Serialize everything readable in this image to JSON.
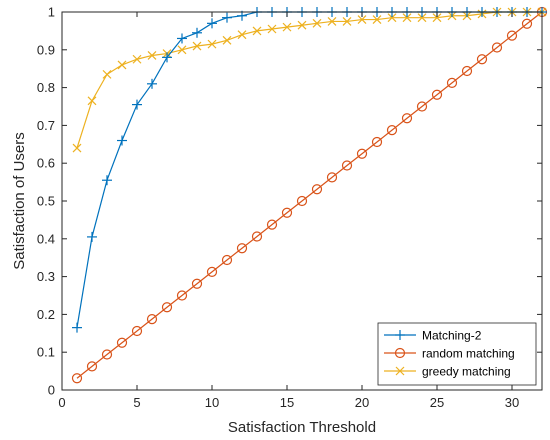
{
  "chart_data": {
    "type": "line",
    "title": "",
    "xlabel": "Satisfaction Threshold",
    "ylabel": "Satisfaction of Users",
    "xlim": [
      0,
      32
    ],
    "ylim": [
      0,
      1
    ],
    "xticks": [
      "0",
      "5",
      "10",
      "15",
      "20",
      "25",
      "30"
    ],
    "yticks": [
      "0",
      "0.1",
      "0.2",
      "0.3",
      "0.4",
      "0.5",
      "0.6",
      "0.7",
      "0.8",
      "0.9",
      "1"
    ],
    "grid": false,
    "legend_position": "bottom-right",
    "series": [
      {
        "name": "Matching-2",
        "color": "#0072BD",
        "marker": "plus",
        "x": [
          1,
          2,
          3,
          4,
          5,
          6,
          7,
          8,
          9,
          10,
          11,
          12,
          13,
          14,
          15,
          16,
          17,
          18,
          19,
          20,
          21,
          22,
          23,
          24,
          25,
          26,
          27,
          28,
          29,
          30,
          31,
          32
        ],
        "values": [
          0.165,
          0.405,
          0.555,
          0.66,
          0.755,
          0.81,
          0.88,
          0.93,
          0.945,
          0.97,
          0.985,
          0.99,
          1,
          1,
          1,
          1,
          1,
          1,
          1,
          1,
          1,
          1,
          1,
          1,
          1,
          1,
          1,
          1,
          1,
          1,
          1,
          1
        ]
      },
      {
        "name": "random matching",
        "color": "#D95319",
        "marker": "circle",
        "x": [
          1,
          2,
          3,
          4,
          5,
          6,
          7,
          8,
          9,
          10,
          11,
          12,
          13,
          14,
          15,
          16,
          17,
          18,
          19,
          20,
          21,
          22,
          23,
          24,
          25,
          26,
          27,
          28,
          29,
          30,
          31,
          32
        ],
        "values": [
          0.031,
          0.0625,
          0.094,
          0.125,
          0.156,
          0.1875,
          0.219,
          0.25,
          0.281,
          0.3125,
          0.344,
          0.375,
          0.406,
          0.4375,
          0.469,
          0.5,
          0.531,
          0.5625,
          0.594,
          0.625,
          0.656,
          0.6875,
          0.719,
          0.75,
          0.781,
          0.8125,
          0.844,
          0.875,
          0.906,
          0.9375,
          0.969,
          1
        ]
      },
      {
        "name": "greedy matching",
        "color": "#EDB120",
        "marker": "x",
        "x": [
          1,
          2,
          3,
          4,
          5,
          6,
          7,
          8,
          9,
          10,
          11,
          12,
          13,
          14,
          15,
          16,
          17,
          18,
          19,
          20,
          21,
          22,
          23,
          24,
          25,
          26,
          27,
          28,
          29,
          30,
          31,
          32
        ],
        "values": [
          0.64,
          0.765,
          0.835,
          0.86,
          0.875,
          0.885,
          0.89,
          0.9,
          0.91,
          0.915,
          0.925,
          0.94,
          0.95,
          0.955,
          0.96,
          0.965,
          0.97,
          0.975,
          0.975,
          0.98,
          0.98,
          0.985,
          0.985,
          0.985,
          0.985,
          0.99,
          0.99,
          0.995,
          1,
          1,
          1,
          1
        ]
      }
    ]
  }
}
